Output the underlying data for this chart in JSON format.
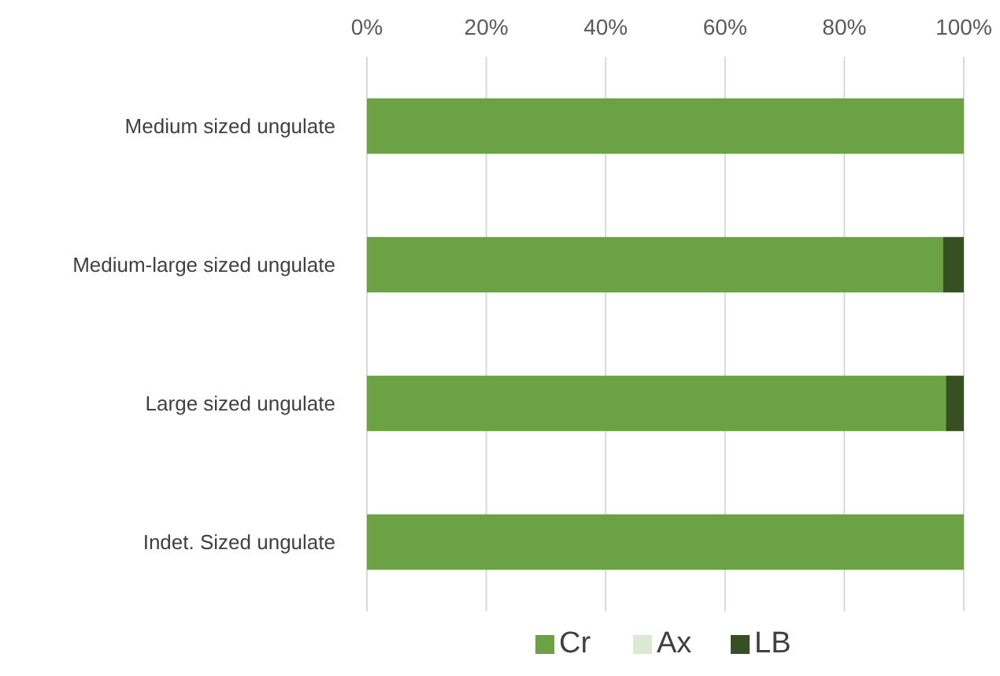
{
  "chart_data": {
    "type": "bar",
    "orientation": "horizontal",
    "stacked": true,
    "categories": [
      "Medium sized ungulate",
      "Medium-large sized ungulate",
      "Large sized ungulate",
      "Indet. Sized ungulate"
    ],
    "series": [
      {
        "name": "Cr",
        "color": "#6aa244",
        "values": [
          100,
          96.5,
          97,
          100
        ]
      },
      {
        "name": "Ax",
        "color": "#dce9d2",
        "values": [
          0,
          0,
          0,
          0
        ]
      },
      {
        "name": "LB",
        "color": "#365021",
        "values": [
          0,
          3.5,
          3,
          0
        ]
      }
    ],
    "xlim": [
      0,
      100
    ],
    "xticks": [
      {
        "value": 0,
        "label": "0%"
      },
      {
        "value": 20,
        "label": "20%"
      },
      {
        "value": 40,
        "label": "40%"
      },
      {
        "value": 60,
        "label": "60%"
      },
      {
        "value": 80,
        "label": "80%"
      },
      {
        "value": 100,
        "label": "100%"
      }
    ],
    "grid": "x",
    "legend": "bottom"
  }
}
